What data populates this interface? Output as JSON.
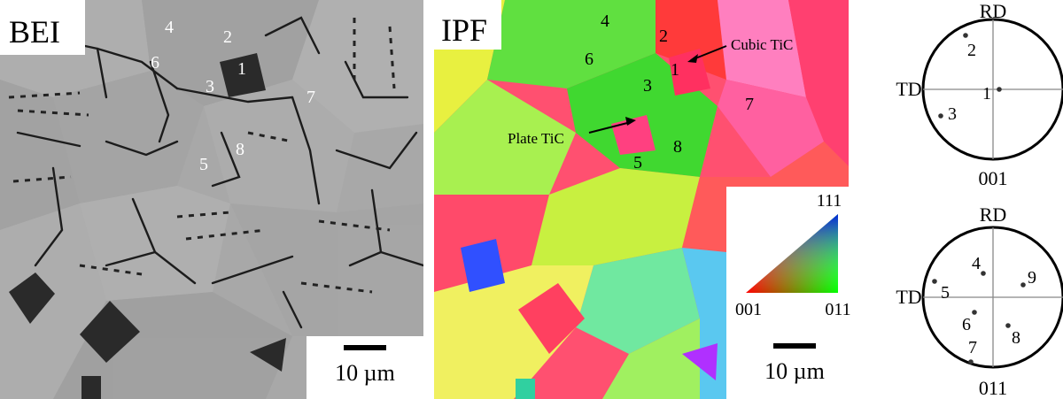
{
  "bei": {
    "title": "BEI",
    "scale_label": "10 µm",
    "grain_labels": [
      "4",
      "2",
      "6",
      "1",
      "3",
      "7",
      "8",
      "5"
    ]
  },
  "ipf": {
    "title": "IPF",
    "scale_label": "10 µm",
    "grain_labels": [
      "4",
      "2",
      "6",
      "1",
      "3",
      "7",
      "8",
      "5"
    ],
    "annotations": [
      "Cubic TiC",
      "Plate TiC"
    ],
    "key": {
      "top": "111",
      "left": "001",
      "right": "011"
    }
  },
  "pole_figures": [
    {
      "top": "RD",
      "left": "TD",
      "bottom": "001",
      "labels": [
        "2",
        "1",
        "3"
      ]
    },
    {
      "top": "RD",
      "left": "TD",
      "bottom": "011",
      "labels": [
        "4",
        "9",
        "5",
        "6",
        "8",
        "7"
      ]
    }
  ],
  "colors": {
    "tic_dark": "#2a2a2a",
    "matrix_gray": "#a9a9a9",
    "boundary": "#1c1c1c"
  }
}
